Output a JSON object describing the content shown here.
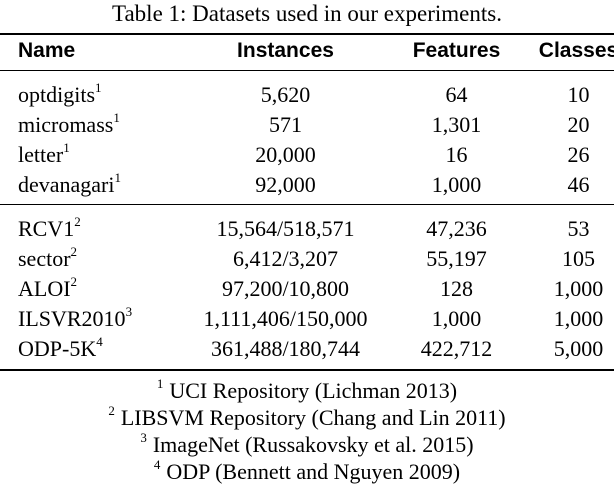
{
  "caption": "Table 1: Datasets used in our experiments.",
  "columns": {
    "name": "Name",
    "instances": "Instances",
    "features": "Features",
    "classes": "Classes"
  },
  "groups": [
    [
      {
        "name": "optdigits",
        "sup": "1",
        "instances": "5,620",
        "features": "64",
        "classes": "10"
      },
      {
        "name": "micromass",
        "sup": "1",
        "instances": "571",
        "features": "1,301",
        "classes": "20"
      },
      {
        "name": "letter",
        "sup": "1",
        "instances": "20,000",
        "features": "16",
        "classes": "26"
      },
      {
        "name": "devanagari",
        "sup": "1",
        "instances": "92,000",
        "features": "1,000",
        "classes": "46"
      }
    ],
    [
      {
        "name": "RCV1",
        "sup": "2",
        "instances": "15,564/518,571",
        "features": "47,236",
        "classes": "53"
      },
      {
        "name": "sector",
        "sup": "2",
        "instances": "6,412/3,207",
        "features": "55,197",
        "classes": "105"
      },
      {
        "name": "ALOI",
        "sup": "2",
        "instances": "97,200/10,800",
        "features": "128",
        "classes": "1,000"
      },
      {
        "name": "ILSVR2010",
        "sup": "3",
        "instances": "1,111,406/150,000",
        "features": "1,000",
        "classes": "1,000"
      },
      {
        "name": "ODP-5K",
        "sup": "4",
        "instances": "361,488/180,744",
        "features": "422,712",
        "classes": "5,000"
      }
    ]
  ],
  "footnotes": [
    {
      "mark": "1",
      "text": "UCI Repository (Lichman 2013)"
    },
    {
      "mark": "2",
      "text": "LIBSVM Repository (Chang and Lin 2011)"
    },
    {
      "mark": "3",
      "text": "ImageNet (Russakovsky et al. 2015)"
    },
    {
      "mark": "4",
      "text": "ODP (Bennett and Nguyen 2009)"
    }
  ]
}
